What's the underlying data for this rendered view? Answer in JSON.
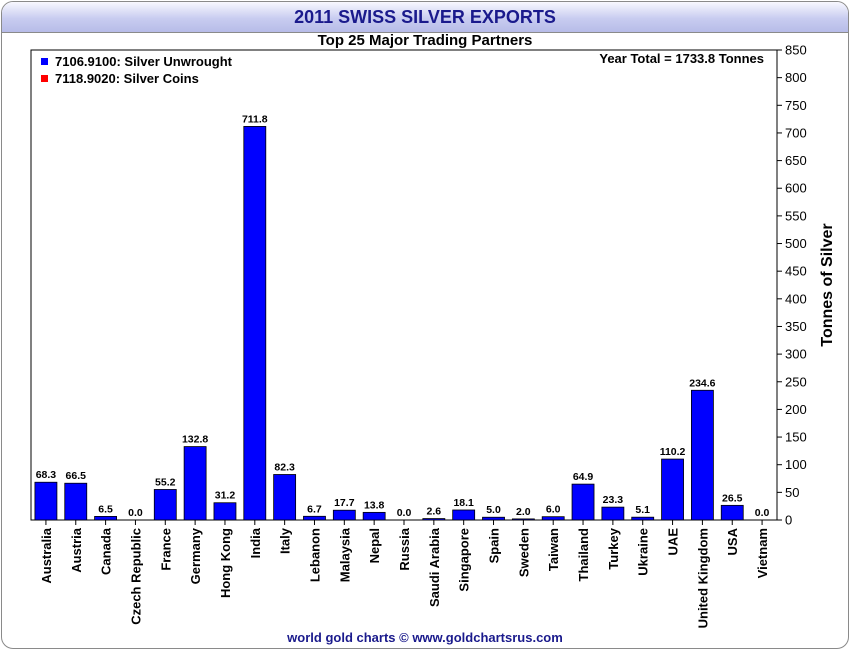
{
  "header": {
    "title": "2011 SWISS SILVER EXPORTS"
  },
  "footer": {
    "credit": "world gold charts © www.goldchartsrus.com"
  },
  "colors": {
    "unwrought": "#0000ff",
    "coins": "#ff0000",
    "title_text": "#1a1a8c"
  },
  "chart_data": {
    "type": "bar",
    "title": "Top 25 Major Trading Partners",
    "annotation": "Year Total = 1733.8 Tonnes",
    "ylabel": "Tonnes of Silver",
    "ylim": [
      0,
      850
    ],
    "ytick_step": 50,
    "y_axis_side": "right",
    "grid": false,
    "legend_position": "top-left",
    "categories": [
      "Australia",
      "Austria",
      "Canada",
      "Czech Republic",
      "France",
      "Germany",
      "Hong Kong",
      "India",
      "Italy",
      "Lebanon",
      "Malaysia",
      "Nepal",
      "Russia",
      "Saudi Arabia",
      "Singapore",
      "Spain",
      "Sweden",
      "Taiwan",
      "Thailand",
      "Turkey",
      "Ukraine",
      "UAE",
      "United Kingdom",
      "USA",
      "Vietnam"
    ],
    "series": [
      {
        "name": "7106.9100: Silver Unwrought",
        "color": "#0000ff",
        "values": [
          68.3,
          66.5,
          6.5,
          0.0,
          55.2,
          132.8,
          31.2,
          711.8,
          82.3,
          6.7,
          17.7,
          13.8,
          0.0,
          2.6,
          18.1,
          5.0,
          2.0,
          6.0,
          64.9,
          23.3,
          5.1,
          110.2,
          234.6,
          26.5,
          0.0
        ]
      },
      {
        "name": "7118.9020: Silver Coins",
        "color": "#ff0000",
        "values": [
          0,
          0,
          0,
          0,
          0,
          0,
          0,
          0,
          0,
          0,
          0,
          0,
          0,
          0,
          0,
          0,
          0,
          0,
          0,
          0,
          0,
          0,
          0,
          0,
          0
        ]
      }
    ],
    "data_labels": [
      "68.3",
      "66.5",
      "6.5",
      "0.0",
      "55.2",
      "132.8",
      "31.2",
      "711.8",
      "82.3",
      "6.7",
      "17.7",
      "13.8",
      "0.0",
      "2.6",
      "18.1",
      "5.0",
      "2.0",
      "6.0",
      "64.9",
      "23.3",
      "5.1",
      "110.2",
      "234.6",
      "26.5",
      "0.0"
    ]
  }
}
